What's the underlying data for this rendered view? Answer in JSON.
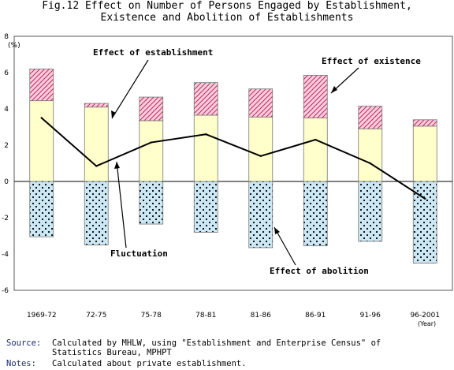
{
  "title": {
    "line1": "Fig.12 Effect on Number of Persons Engaged by Establishment,",
    "line2": "Existence and Abolition of Establishments"
  },
  "chart_data": {
    "type": "bar",
    "y_unit": "(%)",
    "year_unit": "(Year)",
    "ylim": [
      -6,
      8
    ],
    "yticks": [
      -6,
      -4,
      -2,
      0,
      2,
      4,
      6,
      8
    ],
    "categories": [
      "1969-72",
      "72-75",
      "75-78",
      "78-81",
      "81-86",
      "86-91",
      "91-96",
      "96-2001"
    ],
    "series": [
      {
        "name": "Effect of existence",
        "values": [
          4.45,
          4.1,
          3.35,
          3.65,
          3.55,
          3.5,
          2.9,
          3.05
        ]
      },
      {
        "name": "Effect of establishment",
        "values": [
          1.75,
          0.2,
          1.3,
          1.8,
          1.55,
          2.35,
          1.25,
          0.35
        ]
      },
      {
        "name": "Effect of abolition",
        "values": [
          -3.05,
          -3.5,
          -2.35,
          -2.8,
          -3.65,
          -3.55,
          -3.3,
          -4.5
        ]
      },
      {
        "name": "Fluctuation",
        "values": [
          3.5,
          0.85,
          2.15,
          2.6,
          1.4,
          2.3,
          1.0,
          -0.95
        ]
      }
    ],
    "annotations": {
      "establishment": "Effect of establishment",
      "existence": "Effect of existence",
      "fluctuation": "Fluctuation",
      "abolition": "Effect of abolition"
    },
    "colors": {
      "existence_fill": "#ffffcc",
      "establishment_fill": "#ffccdd",
      "establishment_hatch": "#b03060",
      "abolition_fill": "#cce8f4",
      "abolition_dot": "#000000",
      "line": "#000000",
      "axis": "#555555"
    }
  },
  "notes": {
    "source_label": "Source:",
    "source_text": "Calculated by MHLW, using \"Establishment and Enterprise Census\" of Statistics Bureau, MPHPT",
    "notes_label": "Notes:",
    "notes_text": "Calculated about private establishment."
  }
}
